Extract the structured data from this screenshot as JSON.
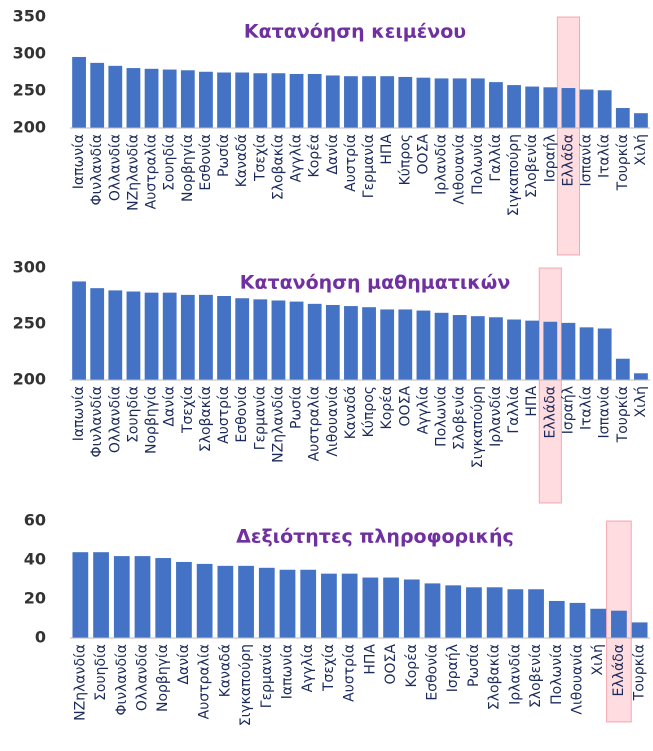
{
  "chart_data": [
    {
      "type": "bar",
      "title": "Κατανόηση κειμένου",
      "color": "#4472c4",
      "highlight": "Ελλάδα",
      "categories": [
        "Ιαπωνία",
        "Φινλανδία",
        "Ολλανδία",
        "ΝΖηλανδία",
        "Αυστραλία",
        "Σουηδία",
        "Νορβηγία",
        "Εσθονία",
        "Ρωσία",
        "Καναδά",
        "Τσεχία",
        "Σλοβακία",
        "Αγγλία",
        "Κορέα",
        "Δανία",
        "Αυστρία",
        "Γερμανία",
        "ΗΠΑ",
        "Κύπρος",
        "ΟΟΣΑ",
        "Ιρλανδία",
        "Λιθουανία",
        "Πολωνία",
        "Γαλλία",
        "Σιγκαπούρη",
        "Σλοβενία",
        "Ισραήλ",
        "Ελλάδα",
        "Ισπανία",
        "Ιταλία",
        "Τουρκία",
        "Χιλή"
      ],
      "values": [
        296,
        288,
        284,
        281,
        280,
        279,
        278,
        276,
        275,
        275,
        274,
        274,
        273,
        273,
        271,
        270,
        270,
        270,
        269,
        268,
        267,
        267,
        267,
        262,
        258,
        256,
        255,
        254,
        252,
        251,
        227,
        220
      ],
      "ylim": [
        200,
        350
      ],
      "yticks": [
        200,
        250,
        300,
        350
      ]
    },
    {
      "type": "bar",
      "title": "Κατανόηση μαθηματικών",
      "color": "#4472c4",
      "highlight": "Ελλάδα",
      "categories": [
        "Ιαπωνία",
        "Φινλανδία",
        "Ολλανδία",
        "Σουηδία",
        "Νορβηγία",
        "Δανία",
        "Τσεχία",
        "Σλοβακία",
        "Αυστρία",
        "Εσθονία",
        "Γερμανία",
        "ΝΖηλανδία",
        "Ρωσία",
        "Αυστραλία",
        "Λιθουανία",
        "Καναδά",
        "Κύπρος",
        "Κορέα",
        "ΟΟΣΑ",
        "Αγγλία",
        "Πολωνία",
        "Σλοβενία",
        "Σιγκαπούρη",
        "Ιρλανδία",
        "Γαλλία",
        "ΗΠΑ",
        "Ελλάδα",
        "Ισραήλ",
        "Ιταλία",
        "Ισπανία",
        "Τουρκία",
        "Χιλή"
      ],
      "values": [
        288,
        282,
        280,
        279,
        278,
        278,
        276,
        276,
        275,
        273,
        272,
        271,
        270,
        268,
        267,
        266,
        265,
        263,
        263,
        262,
        260,
        258,
        257,
        256,
        254,
        253,
        252,
        251,
        247,
        246,
        219,
        206
      ],
      "ylim": [
        200,
        300
      ],
      "yticks": [
        200,
        250,
        300
      ]
    },
    {
      "type": "bar",
      "title": "Δεξιότητες πληροφορικής",
      "color": "#4472c4",
      "highlight": "Ελλάδα",
      "categories": [
        "ΝΖηλανδία",
        "Σουηδία",
        "Φινλανδία",
        "Ολλανδία",
        "Νορβηγία",
        "Δανία",
        "Αυστραλία",
        "Καναδά",
        "Σιγκαπούρη",
        "Γερμανία",
        "Ιαπωνία",
        "Αγγλία",
        "Τσεχία",
        "Αυστρία",
        "ΗΠΑ",
        "ΟΟΣΑ",
        "Κορέα",
        "Εσθονία",
        "Ισραήλ",
        "Ρωσία",
        "Σλοβακία",
        "Ιρλανδία",
        "Σλοβενία",
        "Πολωνία",
        "Λιθουανία",
        "Χιλή",
        "Ελλάδα",
        "Τουρκία"
      ],
      "values": [
        44,
        44,
        42,
        42,
        41,
        39,
        38,
        37,
        37,
        36,
        35,
        35,
        33,
        33,
        31,
        31,
        30,
        28,
        27,
        26,
        26,
        25,
        25,
        19,
        18,
        15,
        14,
        8
      ],
      "ylim": [
        0,
        60
      ],
      "yticks": [
        0,
        20,
        40,
        60
      ]
    }
  ]
}
